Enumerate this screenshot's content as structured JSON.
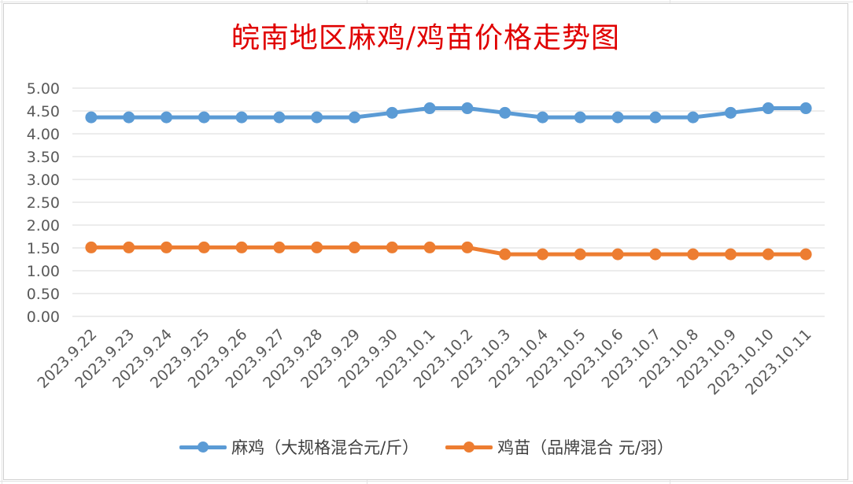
{
  "colors": {
    "title": "#e00000",
    "series_1": "#5b9bd5",
    "series_2": "#ed7d31",
    "gridline": "#d9d9d9",
    "tick_text": "#595959"
  },
  "chart_data": {
    "type": "line",
    "title": "皖南地区麻鸡/鸡苗价格走势图",
    "xlabel": "",
    "ylabel": "",
    "ylim": [
      0,
      5
    ],
    "y_major_unit": 0.5,
    "y_tick_labels": [
      "0.00",
      "0.50",
      "1.00",
      "1.50",
      "2.00",
      "2.50",
      "3.00",
      "3.50",
      "4.00",
      "4.50",
      "5.00"
    ],
    "grid": "horizontal major gridlines",
    "legend_position": "bottom",
    "categories": [
      "2023.9.22",
      "2023.9.23",
      "2023.9.24",
      "2023.9.25",
      "2023.9.26",
      "2023.9.27",
      "2023.9.28",
      "2023.9.29",
      "2023.9.30",
      "2023.10.1",
      "2023.10.2",
      "2023.10.3",
      "2023.10.4",
      "2023.10.5",
      "2023.10.6",
      "2023.10.7",
      "2023.10.8",
      "2023.10.9",
      "2023.10.10",
      "2023.10.11"
    ],
    "series": [
      {
        "name": "麻鸡（大规格混合元/斤）",
        "color": "#5b9bd5",
        "values": [
          4.36,
          4.36,
          4.36,
          4.36,
          4.36,
          4.36,
          4.36,
          4.36,
          4.46,
          4.56,
          4.56,
          4.46,
          4.36,
          4.36,
          4.36,
          4.36,
          4.36,
          4.46,
          4.56,
          4.56
        ]
      },
      {
        "name": "鸡苗（品牌混合 元/羽）",
        "color": "#ed7d31",
        "values": [
          1.51,
          1.51,
          1.51,
          1.51,
          1.51,
          1.51,
          1.51,
          1.51,
          1.51,
          1.51,
          1.51,
          1.36,
          1.36,
          1.36,
          1.36,
          1.36,
          1.36,
          1.36,
          1.36,
          1.36
        ]
      }
    ]
  }
}
